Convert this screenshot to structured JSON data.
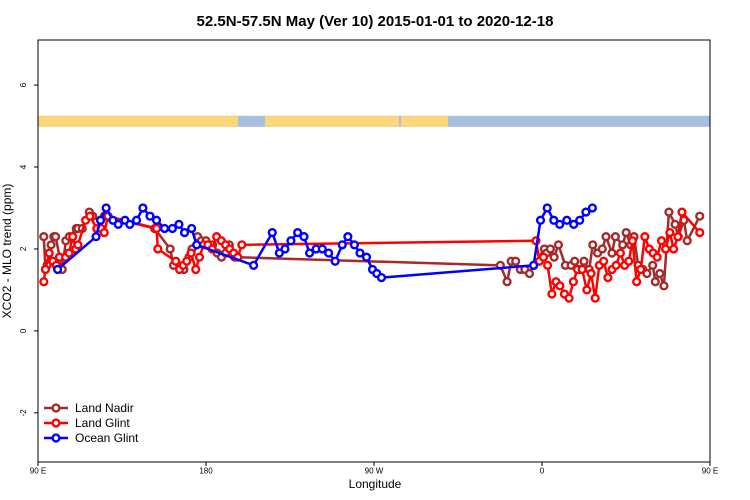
{
  "chart_data": {
    "type": "line",
    "title": "52.5N-57.5N May (Ver 10)   2015-01-01 to 2020-12-18",
    "xlabel": "Longitude",
    "ylabel": "XCO2 - MLO trend (ppm)",
    "xlim": [
      90,
      450
    ],
    "ylim": [
      -3.2,
      7.1
    ],
    "x_ticks": [
      {
        "value": 90,
        "label": "90 E"
      },
      {
        "value": 180,
        "label": "180"
      },
      {
        "value": 270,
        "label": "90 W"
      },
      {
        "value": 360,
        "label": "0"
      },
      {
        "value": 450,
        "label": "90 E"
      },
      {
        "value": 540,
        "label": "180"
      }
    ],
    "y_ticks": [
      {
        "value": -2,
        "label": "-2"
      },
      {
        "value": 0,
        "label": "0"
      },
      {
        "value": 2,
        "label": "2"
      },
      {
        "value": 4,
        "label": "4"
      },
      {
        "value": 6,
        "label": "6"
      }
    ],
    "land_strip": {
      "y_range": [
        4.98,
        5.25
      ],
      "land_color": "#fbd77b",
      "ocean_color": "#a8bfe2",
      "land_segments": [
        [
          0,
          200
        ],
        [
          227,
          361
        ],
        [
          363,
          410
        ]
      ]
    },
    "legend_position": "bottom-left",
    "series": [
      {
        "name": "Land Nadir",
        "color": "#a52a2a",
        "points": [
          [
            93.1,
            2.3
          ],
          [
            94.0,
            1.5
          ],
          [
            94.9,
            1.6
          ],
          [
            97.0,
            2.1
          ],
          [
            98.5,
            2.3
          ],
          [
            99.4,
            2.3
          ],
          [
            103.0,
            1.5
          ],
          [
            104.9,
            2.2
          ],
          [
            106.8,
            2.3
          ],
          [
            110.5,
            2.5
          ],
          [
            111.4,
            2.5
          ],
          [
            113.7,
            2.5
          ],
          [
            117.5,
            2.9
          ],
          [
            119.3,
            2.8
          ],
          [
            123.5,
            2.7
          ],
          [
            125.5,
            2.8
          ],
          [
            152.5,
            2.5
          ],
          [
            160.8,
            2.0
          ],
          [
            162.6,
            1.6
          ],
          [
            168.2,
            1.5
          ],
          [
            170.9,
            1.8
          ],
          [
            172.5,
            2.0
          ],
          [
            175.5,
            2.3
          ],
          [
            177.5,
            2.2
          ],
          [
            180.0,
            2.2
          ],
          [
            183.6,
            2.1
          ],
          [
            186.0,
            1.9
          ],
          [
            188.3,
            1.8
          ],
          [
            190.5,
            1.9
          ],
          [
            192.5,
            2.1
          ],
          [
            195.3,
            1.8
          ],
          [
            337.7,
            1.6
          ],
          [
            341.3,
            1.2
          ],
          [
            343.5,
            1.7
          ],
          [
            345.9,
            1.7
          ],
          [
            348.4,
            1.5
          ],
          [
            350.8,
            1.5
          ],
          [
            353.3,
            1.4
          ],
          [
            355.6,
            1.6
          ],
          [
            361.3,
            2.0
          ],
          [
            362.4,
            1.9
          ],
          [
            364.5,
            2.0
          ],
          [
            366.5,
            1.8
          ],
          [
            368.8,
            2.1
          ],
          [
            372.5,
            1.6
          ],
          [
            375.6,
            1.6
          ],
          [
            377.5,
            1.7
          ],
          [
            380.0,
            1.5
          ],
          [
            382.5,
            1.7
          ],
          [
            385.3,
            1.5
          ],
          [
            387.2,
            2.1
          ],
          [
            389.8,
            1.9
          ],
          [
            392.3,
            2.0
          ],
          [
            394.3,
            2.3
          ],
          [
            397.5,
            1.9
          ],
          [
            399.3,
            2.3
          ],
          [
            403.2,
            2.1
          ],
          [
            405.1,
            2.4
          ],
          [
            407.5,
            2.1
          ],
          [
            409.3,
            2.3
          ],
          [
            411.5,
            1.6
          ],
          [
            414.0,
            1.5
          ],
          [
            416.2,
            1.4
          ],
          [
            419.3,
            1.6
          ],
          [
            420.7,
            1.2
          ],
          [
            423.1,
            1.4
          ],
          [
            425.3,
            1.1
          ],
          [
            428.0,
            2.9
          ],
          [
            431.3,
            2.6
          ],
          [
            433.0,
            2.3
          ],
          [
            436.0,
            2.7
          ],
          [
            437.8,
            2.2
          ],
          [
            444.5,
            2.8
          ]
        ]
      },
      {
        "name": "Land Glint",
        "color": "#ff0000",
        "points": [
          [
            93.1,
            1.2
          ],
          [
            94.0,
            1.5
          ],
          [
            96.0,
            1.9
          ],
          [
            98.0,
            1.7
          ],
          [
            99.8,
            1.6
          ],
          [
            101.5,
            1.8
          ],
          [
            104.8,
            1.8
          ],
          [
            106.6,
            1.9
          ],
          [
            108.6,
            2.3
          ],
          [
            110.2,
            2.0
          ],
          [
            111.4,
            2.1
          ],
          [
            115.5,
            2.7
          ],
          [
            117.8,
            2.8
          ],
          [
            121.5,
            2.5
          ],
          [
            123.8,
            2.5
          ],
          [
            125.5,
            2.4
          ],
          [
            127.5,
            2.8
          ],
          [
            153.5,
            2.5
          ],
          [
            154.2,
            2.0
          ],
          [
            163.8,
            1.7
          ],
          [
            165.8,
            1.5
          ],
          [
            167.8,
            1.6
          ],
          [
            169.7,
            1.7
          ],
          [
            172.0,
            1.9
          ],
          [
            174.5,
            1.5
          ],
          [
            176.5,
            1.8
          ],
          [
            178.7,
            2.1
          ],
          [
            181.0,
            2.1
          ],
          [
            183.3,
            2.0
          ],
          [
            185.7,
            2.3
          ],
          [
            188.2,
            2.2
          ],
          [
            190.5,
            2.1
          ],
          [
            192.7,
            2.0
          ],
          [
            194.8,
            1.9
          ],
          [
            197.0,
            1.8
          ],
          [
            199.2,
            2.1
          ],
          [
            356.8,
            2.2
          ],
          [
            358.6,
            1.7
          ],
          [
            360.8,
            1.8
          ],
          [
            363.0,
            1.6
          ],
          [
            365.3,
            0.9
          ],
          [
            367.5,
            1.2
          ],
          [
            369.6,
            1.1
          ],
          [
            372.0,
            0.9
          ],
          [
            374.5,
            0.8
          ],
          [
            376.8,
            1.2
          ],
          [
            379.0,
            1.5
          ],
          [
            381.5,
            1.5
          ],
          [
            384.0,
            1.0
          ],
          [
            386.3,
            1.4
          ],
          [
            388.5,
            0.8
          ],
          [
            390.7,
            1.6
          ],
          [
            393.0,
            1.7
          ],
          [
            395.3,
            1.3
          ],
          [
            397.5,
            1.5
          ],
          [
            399.7,
            1.6
          ],
          [
            402.0,
            1.9
          ],
          [
            404.3,
            1.6
          ],
          [
            406.5,
            1.7
          ],
          [
            408.5,
            2.2
          ],
          [
            410.7,
            1.2
          ],
          [
            412.9,
            1.5
          ],
          [
            415.1,
            2.3
          ],
          [
            417.5,
            2.0
          ],
          [
            419.5,
            1.9
          ],
          [
            421.7,
            1.8
          ],
          [
            424.0,
            2.2
          ],
          [
            426.2,
            2.0
          ],
          [
            428.5,
            2.4
          ],
          [
            430.5,
            2.0
          ],
          [
            432.8,
            2.3
          ],
          [
            435.0,
            2.9
          ],
          [
            444.5,
            2.4
          ]
        ]
      },
      {
        "name": "Ocean Glint",
        "color": "#0000ff",
        "points": [
          [
            100.5,
            1.5
          ],
          [
            121.1,
            2.3
          ],
          [
            123.5,
            2.7
          ],
          [
            126.5,
            3.0
          ],
          [
            130.1,
            2.7
          ],
          [
            133.0,
            2.6
          ],
          [
            136.6,
            2.7
          ],
          [
            139.2,
            2.6
          ],
          [
            142.8,
            2.7
          ],
          [
            146.2,
            3.0
          ],
          [
            150.0,
            2.8
          ],
          [
            153.5,
            2.7
          ],
          [
            157.8,
            2.5
          ],
          [
            162.0,
            2.5
          ],
          [
            165.5,
            2.6
          ],
          [
            168.5,
            2.4
          ],
          [
            172.3,
            2.5
          ],
          [
            175.0,
            2.1
          ],
          [
            205.5,
            1.6
          ],
          [
            215.5,
            2.4
          ],
          [
            219.3,
            1.9
          ],
          [
            222.3,
            2.0
          ],
          [
            225.5,
            2.2
          ],
          [
            229.1,
            2.4
          ],
          [
            232.5,
            2.3
          ],
          [
            235.5,
            1.9
          ],
          [
            239.0,
            2.0
          ],
          [
            242.3,
            2.0
          ],
          [
            245.7,
            1.9
          ],
          [
            249.2,
            1.7
          ],
          [
            253.0,
            2.1
          ],
          [
            256.0,
            2.3
          ],
          [
            259.5,
            2.1
          ],
          [
            262.5,
            1.9
          ],
          [
            266.0,
            1.8
          ],
          [
            269.2,
            1.5
          ],
          [
            271.5,
            1.4
          ],
          [
            274.0,
            1.3
          ],
          [
            355.5,
            1.6
          ],
          [
            359.2,
            2.7
          ],
          [
            362.8,
            3.0
          ],
          [
            366.3,
            2.7
          ],
          [
            369.5,
            2.6
          ],
          [
            373.3,
            2.7
          ],
          [
            377.0,
            2.6
          ],
          [
            380.2,
            2.7
          ],
          [
            383.5,
            2.9
          ],
          [
            387.0,
            3.0
          ]
        ]
      }
    ]
  }
}
